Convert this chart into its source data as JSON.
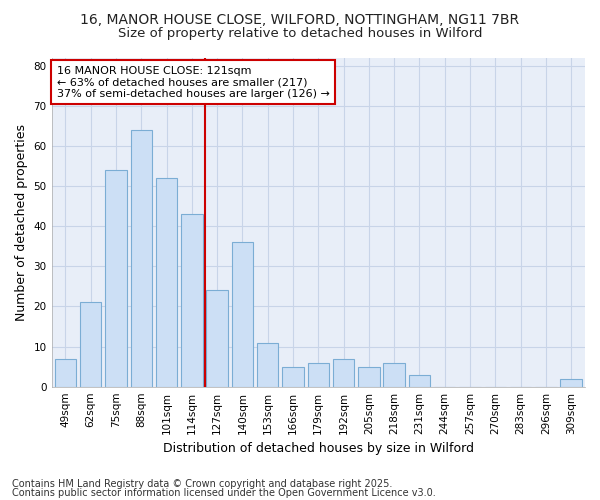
{
  "title1": "16, MANOR HOUSE CLOSE, WILFORD, NOTTINGHAM, NG11 7BR",
  "title2": "Size of property relative to detached houses in Wilford",
  "xlabel": "Distribution of detached houses by size in Wilford",
  "ylabel": "Number of detached properties",
  "categories": [
    "49sqm",
    "62sqm",
    "75sqm",
    "88sqm",
    "101sqm",
    "114sqm",
    "127sqm",
    "140sqm",
    "153sqm",
    "166sqm",
    "179sqm",
    "192sqm",
    "205sqm",
    "218sqm",
    "231sqm",
    "244sqm",
    "257sqm",
    "270sqm",
    "283sqm",
    "296sqm",
    "309sqm"
  ],
  "values": [
    7,
    21,
    54,
    64,
    52,
    43,
    24,
    36,
    11,
    5,
    6,
    7,
    5,
    6,
    3,
    0,
    0,
    0,
    0,
    0,
    2
  ],
  "bar_color": "#ccdff5",
  "bar_edge_color": "#7badd4",
  "vline_x": 5.5,
  "vline_color": "#cc0000",
  "annotation_line1": "16 MANOR HOUSE CLOSE: 121sqm",
  "annotation_line2": "← 63% of detached houses are smaller (217)",
  "annotation_line3": "37% of semi-detached houses are larger (126) →",
  "annotation_box_color": "#ffffff",
  "annotation_box_edge_color": "#cc0000",
  "ylim": [
    0,
    82
  ],
  "yticks": [
    0,
    10,
    20,
    30,
    40,
    50,
    60,
    70,
    80
  ],
  "grid_color": "#c8d4e8",
  "background_color": "#ffffff",
  "plot_bg_color": "#e8eef8",
  "footer1": "Contains HM Land Registry data © Crown copyright and database right 2025.",
  "footer2": "Contains public sector information licensed under the Open Government Licence v3.0.",
  "title_fontsize": 10,
  "subtitle_fontsize": 9.5,
  "axis_label_fontsize": 9,
  "tick_fontsize": 7.5,
  "ann_fontsize": 8,
  "footer_fontsize": 7
}
